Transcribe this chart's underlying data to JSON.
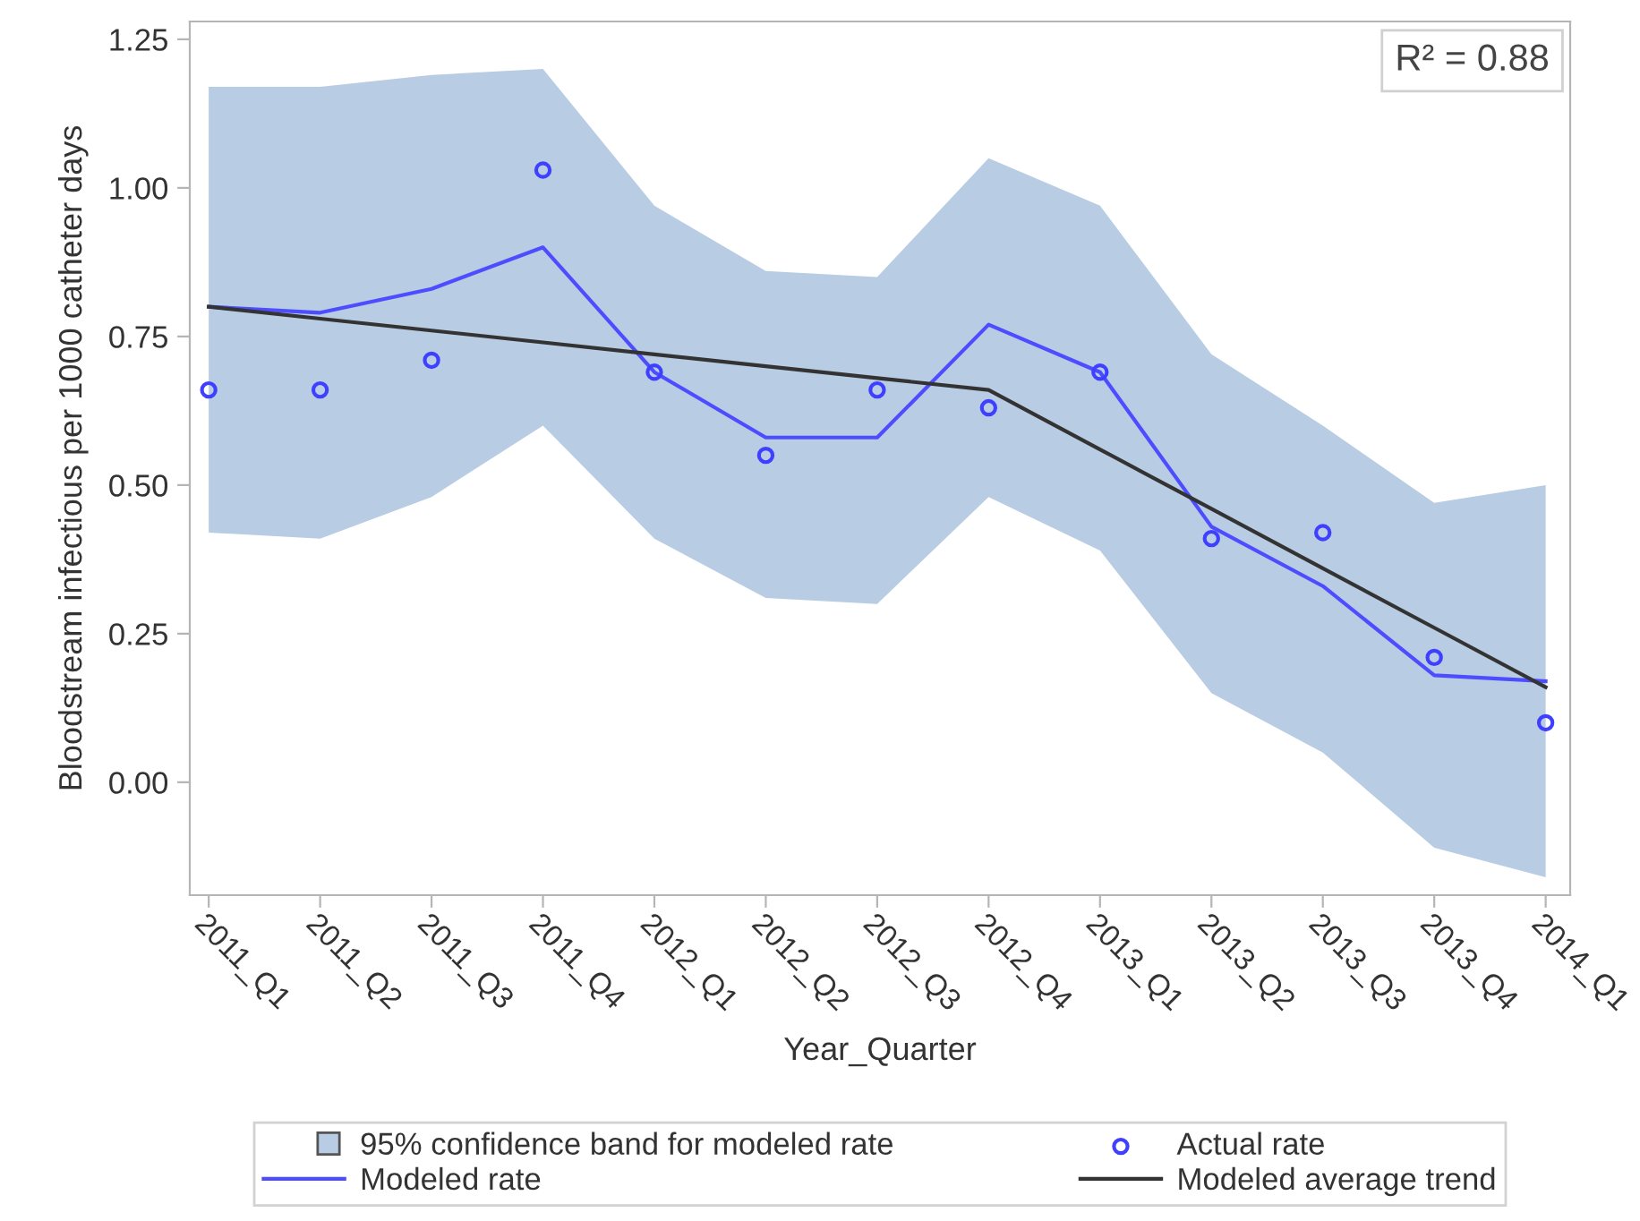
{
  "chart_data": {
    "type": "line",
    "xlabel": "Year_Quarter",
    "ylabel": "Bloodstream infectious per 1000 catheter days",
    "categories": [
      "2011_Q1",
      "2011_Q2",
      "2011_Q3",
      "2011_Q4",
      "2012_Q1",
      "2012_Q2",
      "2012_Q3",
      "2012_Q4",
      "2013_Q1",
      "2013_Q2",
      "2013_Q3",
      "2013_Q4",
      "2014_Q1"
    ],
    "series": [
      {
        "name": "95% confidence band for modeled rate",
        "type": "area",
        "color": "#b8cce4",
        "values": [
          null,
          null,
          null,
          null,
          null,
          null,
          null,
          null,
          null,
          null,
          null,
          null,
          null
        ],
        "lower": [
          0.42,
          0.41,
          0.48,
          0.6,
          0.41,
          0.31,
          0.3,
          0.48,
          0.39,
          0.15,
          0.05,
          -0.11,
          -0.16
        ],
        "upper": [
          1.17,
          1.17,
          1.19,
          1.2,
          0.97,
          0.86,
          0.85,
          1.05,
          0.97,
          0.72,
          0.6,
          0.47,
          0.5
        ]
      },
      {
        "name": "Modeled rate",
        "color": "#4d4dff",
        "line_style": "solid",
        "values": [
          0.8,
          0.79,
          0.83,
          0.9,
          0.69,
          0.58,
          0.58,
          0.77,
          0.69,
          0.43,
          0.33,
          0.18,
          0.17
        ]
      },
      {
        "name": "Actual rate",
        "type": "scatter",
        "marker": "circle",
        "color": "#3f3fff",
        "values": [
          0.66,
          0.66,
          0.71,
          1.03,
          0.69,
          0.55,
          0.66,
          0.63,
          0.69,
          0.41,
          0.42,
          0.21,
          0.1
        ]
      },
      {
        "name": "Modeled average trend",
        "color": "#333333",
        "line_style": "solid",
        "values": [
          0.8,
          0.78,
          0.76,
          0.74,
          0.72,
          0.7,
          0.68,
          0.66,
          0.56,
          0.46,
          0.36,
          0.26,
          0.16
        ]
      }
    ],
    "ylim": [
      -0.19,
      1.28
    ],
    "yticks": [
      {
        "value": 0,
        "label": "0.00"
      },
      {
        "value": 0.25,
        "label": "0.25"
      },
      {
        "value": 0.5,
        "label": "0.50"
      },
      {
        "value": 0.75,
        "label": "0.75"
      },
      {
        "value": 1,
        "label": "1.00"
      },
      {
        "value": 1.25,
        "label": "1.25"
      }
    ],
    "annotations": [
      "R² = 0.88"
    ],
    "legend": "bottom"
  }
}
